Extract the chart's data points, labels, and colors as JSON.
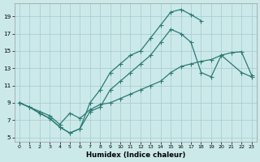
{
  "xlabel": "Humidex (Indice chaleur)",
  "background_color": "#cce9ea",
  "grid_color": "#aacfd1",
  "line_color": "#2a7a72",
  "xlim": [
    -0.5,
    23.5
  ],
  "ylim": [
    4.5,
    20.5
  ],
  "yticks": [
    5,
    7,
    9,
    11,
    13,
    15,
    17,
    19
  ],
  "xticks": [
    0,
    1,
    2,
    3,
    4,
    5,
    6,
    7,
    8,
    9,
    10,
    11,
    12,
    13,
    14,
    15,
    16,
    17,
    18,
    19,
    20,
    21,
    22,
    23
  ],
  "curve_bell_x": [
    0,
    1,
    2,
    3,
    4,
    5,
    6,
    7,
    8,
    9,
    10,
    11,
    12,
    13,
    14,
    15,
    16,
    17,
    18
  ],
  "curve_bell_y": [
    9.0,
    8.5,
    7.8,
    7.2,
    6.2,
    5.5,
    6.0,
    9.0,
    10.5,
    12.5,
    13.5,
    14.5,
    15.0,
    16.5,
    18.0,
    19.5,
    19.8,
    19.2,
    18.5
  ],
  "curve_mid_x": [
    0,
    1,
    2,
    3,
    4,
    5,
    6,
    7,
    8,
    9,
    10,
    11,
    12,
    13,
    14,
    15,
    16,
    17,
    18,
    19,
    20,
    22,
    23
  ],
  "curve_mid_y": [
    9.0,
    8.5,
    7.8,
    7.2,
    6.2,
    5.5,
    6.0,
    8.0,
    8.5,
    10.5,
    11.5,
    12.5,
    13.5,
    14.5,
    16.0,
    17.5,
    17.0,
    16.0,
    12.5,
    12.0,
    14.5,
    12.5,
    12.0
  ],
  "curve_diag_x": [
    0,
    2,
    3,
    4,
    5,
    6,
    7,
    8,
    9,
    10,
    11,
    12,
    13,
    14,
    15,
    16,
    17,
    18,
    19,
    20,
    21,
    22,
    23
  ],
  "curve_diag_y": [
    9.0,
    8.0,
    7.5,
    6.5,
    7.8,
    7.2,
    8.2,
    8.8,
    9.0,
    9.5,
    10.0,
    10.5,
    11.0,
    11.5,
    12.5,
    13.2,
    13.5,
    13.8,
    14.0,
    14.5,
    14.8,
    14.9,
    12.2
  ]
}
